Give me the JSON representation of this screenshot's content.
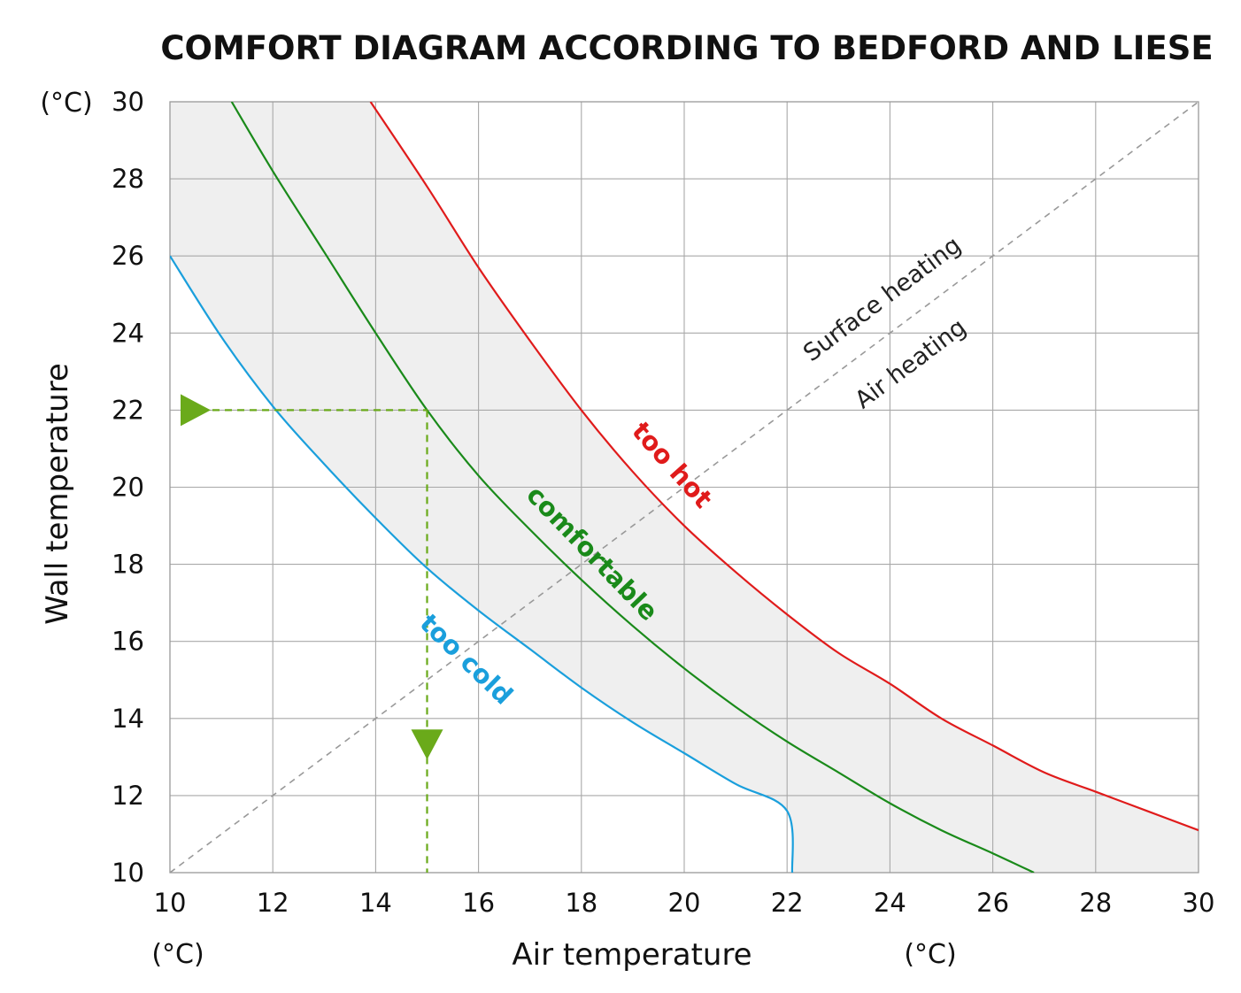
{
  "chart_data": {
    "type": "line",
    "title": "COMFORT DIAGRAM ACCORDING TO BEDFORD AND LIESE",
    "xlabel": "Air temperature",
    "ylabel": "Wall temperature",
    "x_unit": "(°C)",
    "x_unit_right": "(°C)",
    "y_unit": "(°C)",
    "xlim": [
      10,
      30
    ],
    "ylim": [
      10,
      30
    ],
    "xticks": [
      "10",
      "12",
      "14",
      "16",
      "18",
      "20",
      "22",
      "24",
      "26",
      "28",
      "30"
    ],
    "yticks": [
      "10",
      "12",
      "14",
      "16",
      "18",
      "20",
      "22",
      "24",
      "26",
      "28",
      "30"
    ],
    "grid": true,
    "comfort_band_color": "#efefef",
    "series": [
      {
        "name": "too cold",
        "color": "#1a9fdc",
        "x": [
          10,
          11,
          12,
          13,
          14,
          15,
          16,
          17,
          18,
          19,
          20,
          21,
          22,
          22.1
        ],
        "y": [
          26.0,
          23.9,
          22.1,
          20.6,
          19.2,
          17.9,
          16.8,
          15.8,
          14.8,
          13.9,
          13.1,
          12.3,
          11.6,
          10.0
        ]
      },
      {
        "name": "comfortable",
        "color": "#1a8a1a",
        "x": [
          11.2,
          12,
          13,
          14,
          15,
          16,
          17,
          18,
          19,
          20,
          21,
          22,
          23,
          24,
          25,
          26,
          26.8
        ],
        "y": [
          30.0,
          28.2,
          26.1,
          24.0,
          22.0,
          20.3,
          18.9,
          17.6,
          16.4,
          15.3,
          14.3,
          13.4,
          12.6,
          11.8,
          11.1,
          10.5,
          10.0
        ]
      },
      {
        "name": "too hot",
        "color": "#e01b1b",
        "x": [
          13.9,
          15,
          16,
          17,
          18,
          19,
          20,
          21,
          22,
          23,
          24,
          25,
          26,
          27,
          28,
          29,
          30
        ],
        "y": [
          30.0,
          27.8,
          25.7,
          23.8,
          22.0,
          20.4,
          19.0,
          17.8,
          16.7,
          15.7,
          14.9,
          14.0,
          13.3,
          12.6,
          12.1,
          11.6,
          11.1
        ]
      }
    ],
    "reference_line": {
      "color": "#999999",
      "x": [
        10,
        30
      ],
      "y": [
        10,
        30
      ],
      "label_above": "Surface heating",
      "label_below": "Air heating"
    },
    "example": {
      "color": "#6aaa1a",
      "air_temp": 15,
      "wall_temp": 22
    }
  }
}
